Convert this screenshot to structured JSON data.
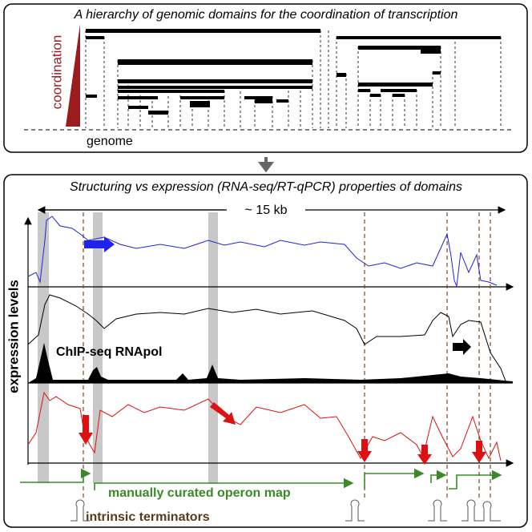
{
  "top_panel": {
    "title": "A hierarchy of genomic domains for the coordination of transcription",
    "scale_label": "coordination",
    "genome_label": "genome"
  },
  "bottom_panel": {
    "title": "Structuring vs expression (RNA-seq/RT-qPCR) properties of domains",
    "length_label": "~ 15 kb",
    "y_axis_label": "expression levels",
    "chip_label": "ChIP-seq RNApol",
    "operon_label": "manually curated operon map",
    "terminator_label": "intrinsic terminators"
  }
}
